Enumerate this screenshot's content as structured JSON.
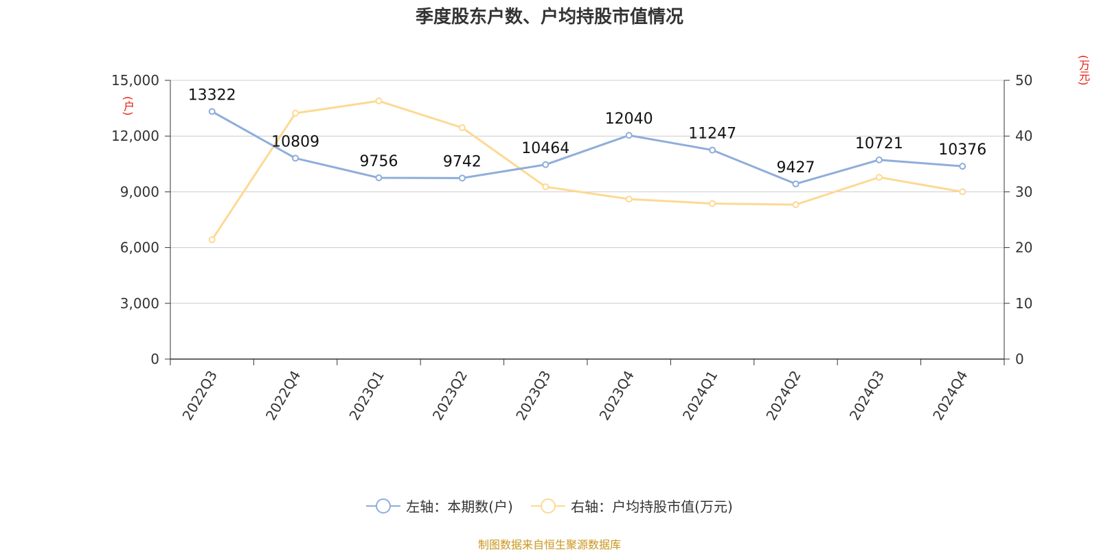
{
  "title": "季度股东户数、户均持股市值情况",
  "source": "制图数据来自恒生聚源数据库",
  "colors": {
    "series_left": "#8eaddb",
    "series_right": "#fdd993",
    "unit_label": "#e8180c",
    "source": "#c9961e"
  },
  "chart_data": {
    "type": "line",
    "title": "季度股东户数、户均持股市值情况",
    "categories": [
      "2022Q3",
      "2022Q4",
      "2023Q1",
      "2023Q2",
      "2023Q3",
      "2023Q4",
      "2024Q1",
      "2024Q2",
      "2024Q3",
      "2024Q4"
    ],
    "y_left": {
      "unit": "(户)",
      "range": [
        0,
        15000
      ],
      "ticks": [
        0,
        3000,
        6000,
        9000,
        12000,
        15000
      ],
      "tick_labels": [
        "0",
        "3,000",
        "6,000",
        "9,000",
        "12,000",
        "15,000"
      ]
    },
    "y_right": {
      "unit": "(万元)",
      "range": [
        0,
        50
      ],
      "ticks": [
        0,
        10,
        20,
        30,
        40,
        50
      ],
      "tick_labels": [
        "0",
        "10",
        "20",
        "30",
        "40",
        "50"
      ]
    },
    "grid": true,
    "legend_position": "bottom",
    "series": [
      {
        "name": "左轴：本期数(户)",
        "axis": "left",
        "values": [
          13322,
          10809,
          9756,
          9742,
          10464,
          12040,
          11247,
          9427,
          10721,
          10376
        ],
        "labels": [
          "13322",
          "10809",
          "9756",
          "9742",
          "10464",
          "12040",
          "11247",
          "9427",
          "10721",
          "10376"
        ]
      },
      {
        "name": "右轴：户均持股市值(万元)",
        "axis": "right",
        "values": [
          21.4,
          44.1,
          46.3,
          41.5,
          30.9,
          28.7,
          27.9,
          27.7,
          32.6,
          30.0
        ]
      }
    ]
  }
}
